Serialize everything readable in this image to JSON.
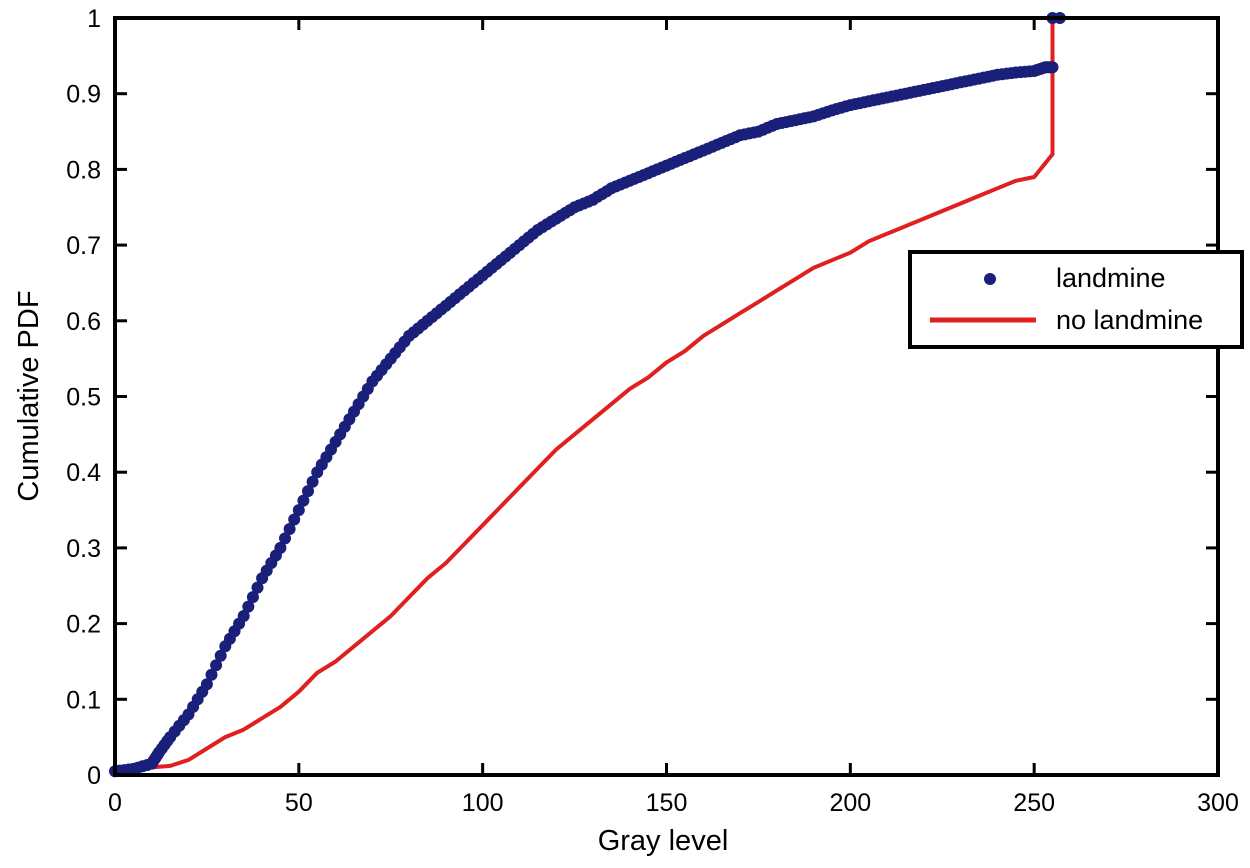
{
  "chart_data": {
    "type": "scatter",
    "title": "",
    "xlabel": "Gray level",
    "ylabel": "Cumulative PDF",
    "xlim": [
      0,
      300
    ],
    "ylim": [
      0,
      1
    ],
    "xticks": [
      0,
      50,
      100,
      150,
      200,
      250,
      300
    ],
    "yticks": [
      0,
      0.1,
      0.2,
      0.3,
      0.4,
      0.5,
      0.6,
      0.7,
      0.8,
      0.9,
      1
    ],
    "ytick_labels": [
      "0",
      "0.1",
      "0.2",
      "0.3",
      "0.4",
      "0.5",
      "0.6",
      "0.7",
      "0.8",
      "0.9",
      "1"
    ],
    "grid": false,
    "legend_position": "right",
    "series": [
      {
        "name": "landmine",
        "style": "markers",
        "color": "#1a1f7a",
        "x": [
          0,
          5,
          10,
          12,
          15,
          20,
          25,
          30,
          35,
          40,
          45,
          50,
          55,
          60,
          65,
          70,
          75,
          80,
          85,
          90,
          95,
          100,
          105,
          110,
          115,
          120,
          125,
          130,
          135,
          140,
          145,
          150,
          155,
          160,
          165,
          170,
          175,
          180,
          185,
          190,
          195,
          200,
          205,
          210,
          215,
          220,
          225,
          230,
          235,
          240,
          245,
          250,
          253,
          255
        ],
        "y": [
          0.005,
          0.008,
          0.015,
          0.03,
          0.05,
          0.08,
          0.12,
          0.17,
          0.21,
          0.26,
          0.3,
          0.35,
          0.4,
          0.44,
          0.48,
          0.52,
          0.55,
          0.58,
          0.6,
          0.62,
          0.64,
          0.66,
          0.68,
          0.7,
          0.72,
          0.735,
          0.75,
          0.76,
          0.775,
          0.785,
          0.795,
          0.805,
          0.815,
          0.825,
          0.835,
          0.845,
          0.85,
          0.86,
          0.865,
          0.87,
          0.878,
          0.885,
          0.89,
          0.895,
          0.9,
          0.905,
          0.91,
          0.915,
          0.92,
          0.925,
          0.928,
          0.93,
          0.935,
          0.935
        ],
        "end_points": [
          [
            255,
            1.0
          ],
          [
            257,
            1.0
          ]
        ]
      },
      {
        "name": "no landmine",
        "style": "line",
        "color": "#e02020",
        "x": [
          3,
          10,
          15,
          20,
          25,
          30,
          35,
          40,
          45,
          50,
          55,
          60,
          65,
          70,
          75,
          80,
          85,
          90,
          95,
          100,
          105,
          110,
          115,
          120,
          125,
          130,
          135,
          140,
          145,
          150,
          155,
          160,
          165,
          170,
          175,
          180,
          185,
          190,
          195,
          200,
          205,
          210,
          215,
          220,
          225,
          230,
          235,
          240,
          245,
          250,
          255,
          255
        ],
        "y": [
          0.01,
          0.01,
          0.012,
          0.02,
          0.035,
          0.05,
          0.06,
          0.075,
          0.09,
          0.11,
          0.135,
          0.15,
          0.17,
          0.19,
          0.21,
          0.235,
          0.26,
          0.28,
          0.305,
          0.33,
          0.355,
          0.38,
          0.405,
          0.43,
          0.45,
          0.47,
          0.49,
          0.51,
          0.525,
          0.545,
          0.56,
          0.58,
          0.595,
          0.61,
          0.625,
          0.64,
          0.655,
          0.67,
          0.68,
          0.69,
          0.705,
          0.715,
          0.725,
          0.735,
          0.745,
          0.755,
          0.765,
          0.775,
          0.785,
          0.79,
          0.82,
          1.0
        ]
      }
    ]
  }
}
